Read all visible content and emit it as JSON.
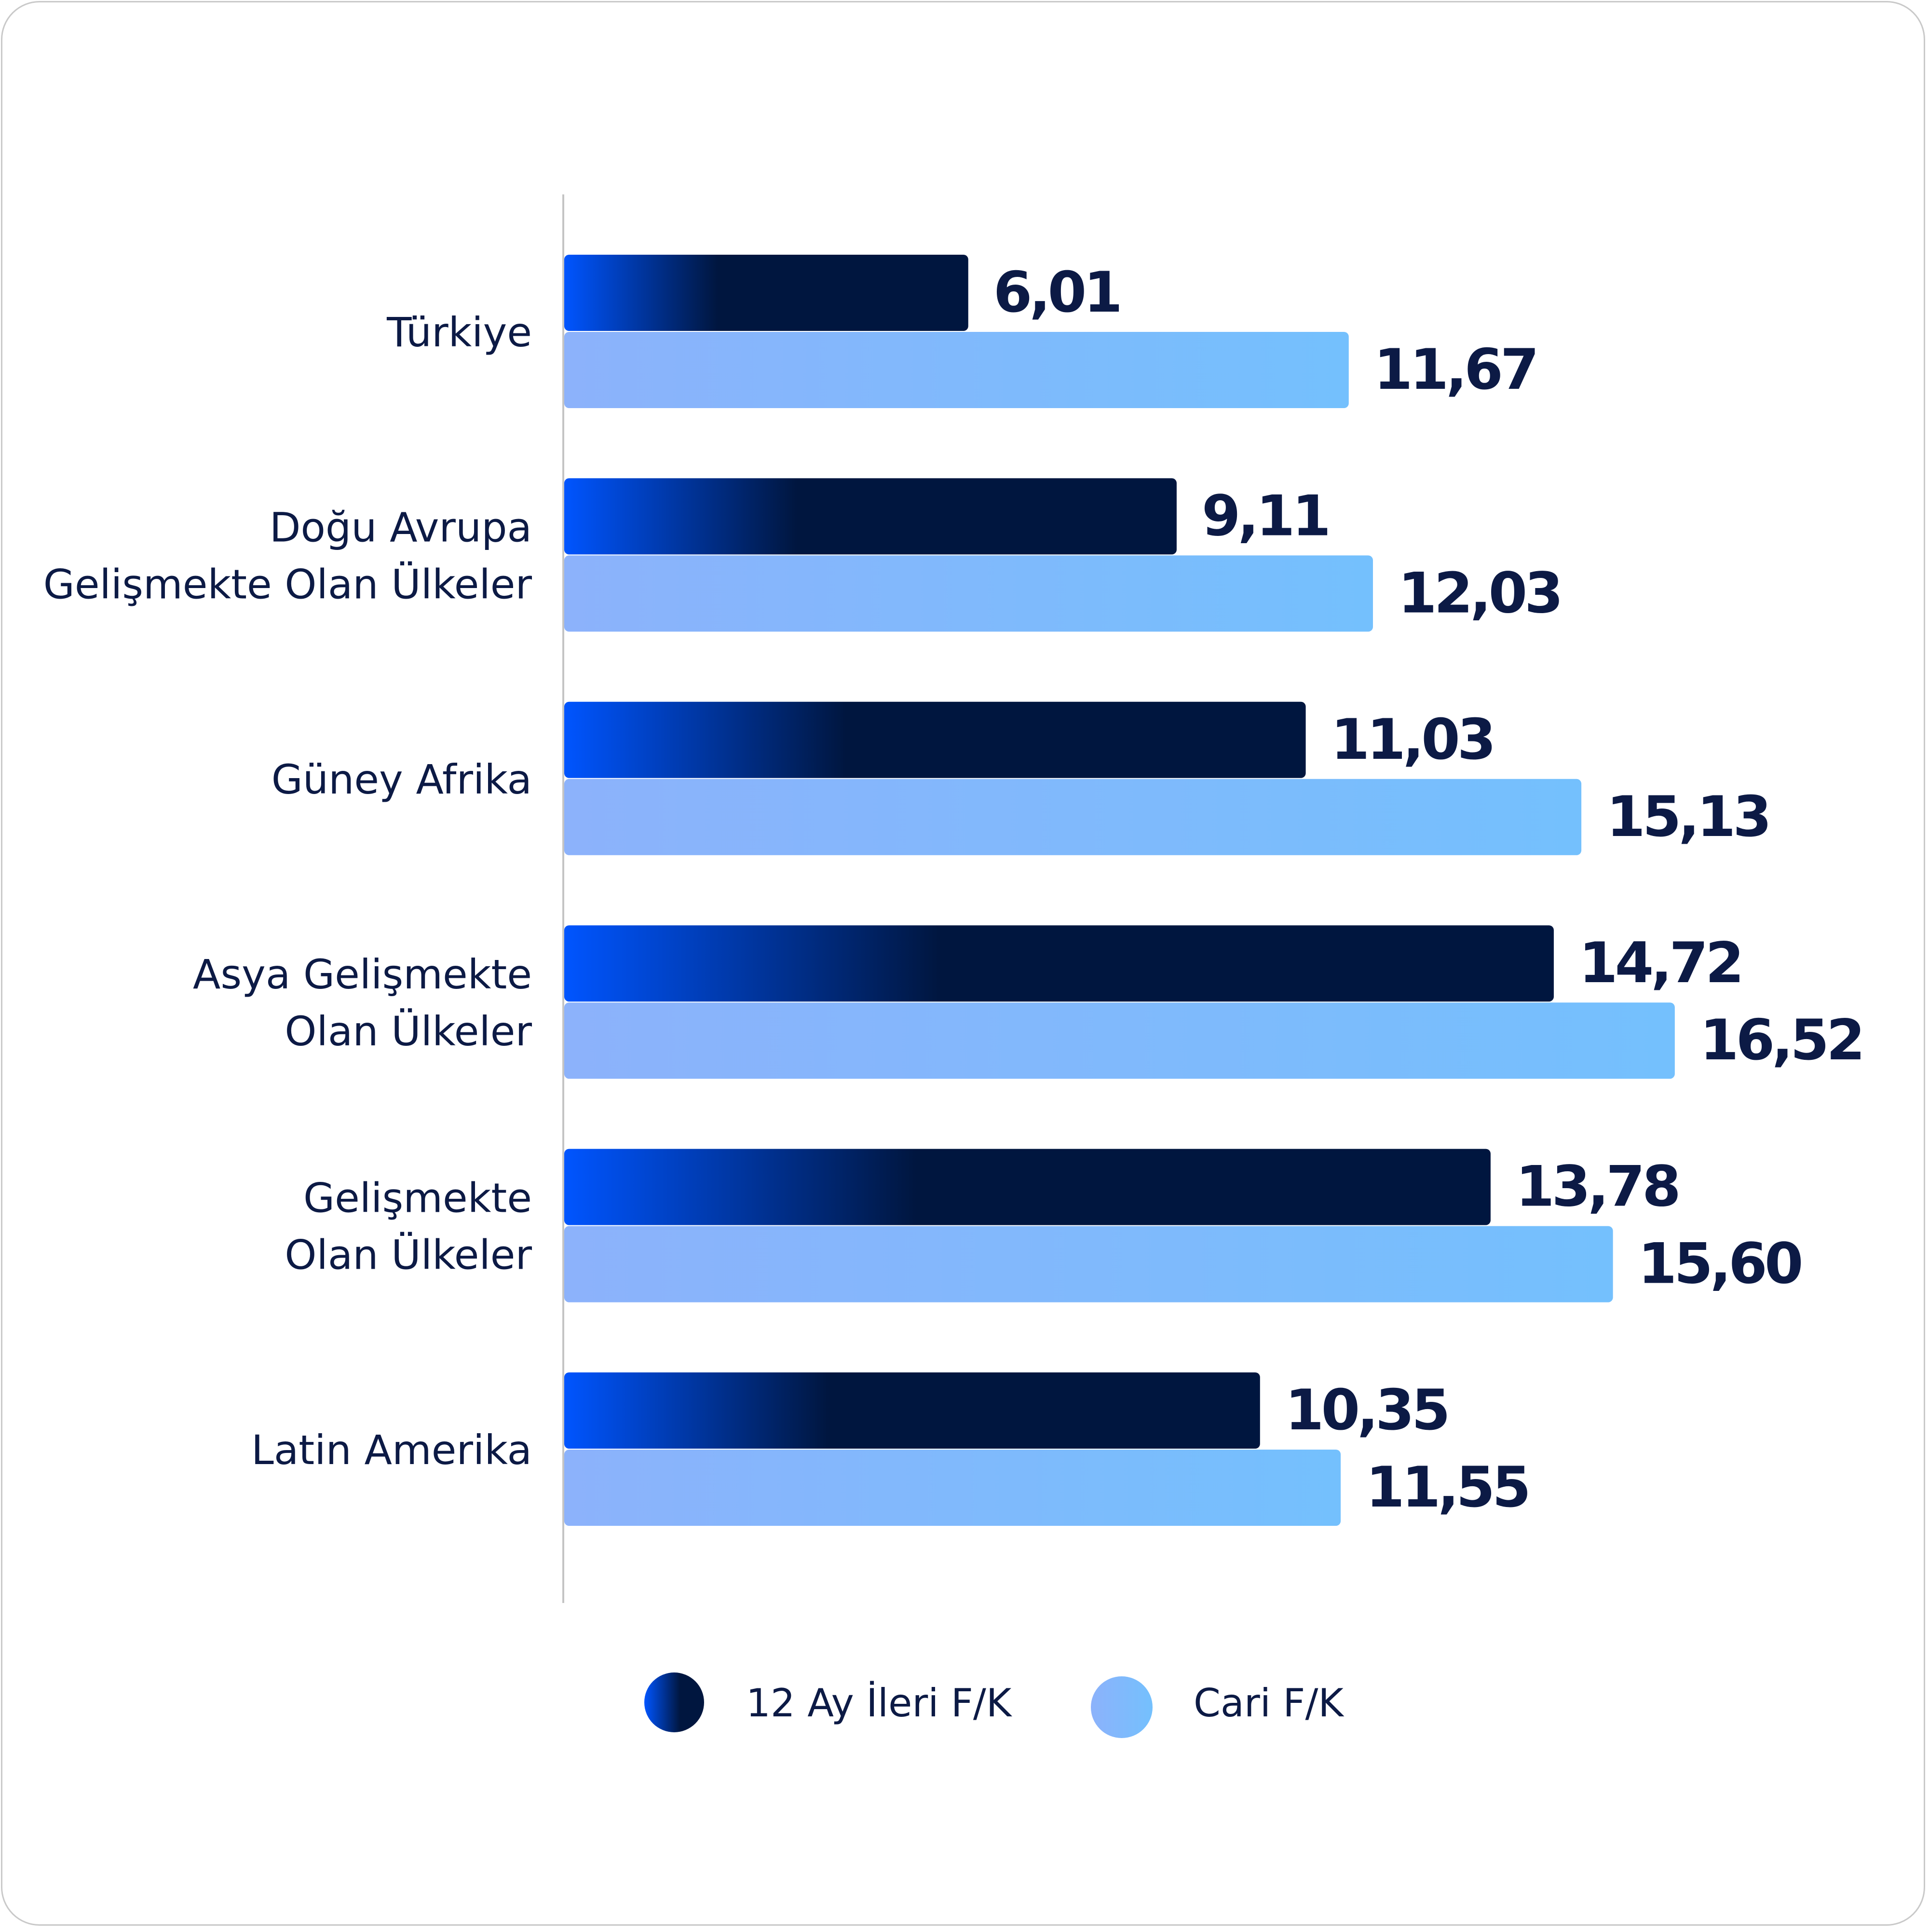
{
  "chart_data": {
    "type": "bar",
    "orientation": "horizontal",
    "categories": [
      [
        "Türkiye"
      ],
      [
        "Doğu Avrupa",
        "Gelişmekte Olan Ülkeler"
      ],
      [
        "Güney Afrika"
      ],
      [
        "Asya Gelişmekte",
        "Olan Ülkeler"
      ],
      [
        "Gelişmekte",
        "Olan Ülkeler"
      ],
      [
        "Latin Amerika"
      ]
    ],
    "series": [
      {
        "name": "12 Ay İleri F/K",
        "values": [
          6.01,
          9.11,
          11.03,
          14.72,
          13.78,
          10.35
        ],
        "labels": [
          "6,01",
          "9,11",
          "11,03",
          "14,72",
          "13,78",
          "10,35"
        ],
        "colors": [
          "#0055ff",
          "#00163f"
        ]
      },
      {
        "name": "Cari F/K",
        "values": [
          11.67,
          12.03,
          15.13,
          16.52,
          15.6,
          11.55
        ],
        "labels": [
          "11,67",
          "12,03",
          "15,13",
          "16,52",
          "15,60",
          "11,55"
        ],
        "colors": [
          "#8cb2fb",
          "#74c0fd"
        ]
      }
    ],
    "legend_position": "bottom",
    "grid": false
  }
}
